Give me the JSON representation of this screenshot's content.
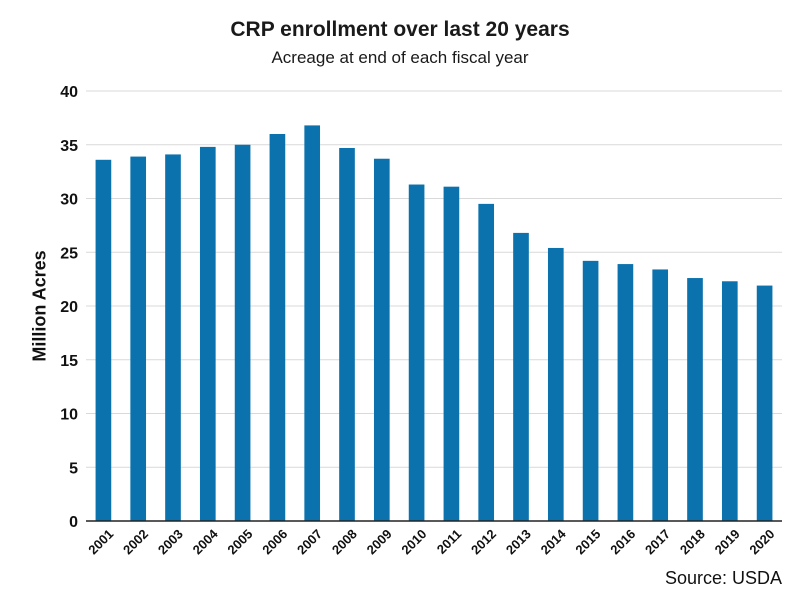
{
  "chart_data": {
    "type": "bar",
    "title": "CRP enrollment over last 20 years",
    "subtitle": "Acreage at end of each fiscal year",
    "ylabel": "Million Acres",
    "xlabel": "",
    "source": "Source: USDA",
    "categories": [
      "2001",
      "2002",
      "2003",
      "2004",
      "2005",
      "2006",
      "2007",
      "2008",
      "2009",
      "2010",
      "2011",
      "2012",
      "2013",
      "2014",
      "2015",
      "2016",
      "2017",
      "2018",
      "2019",
      "2020"
    ],
    "values": [
      33.6,
      33.9,
      34.1,
      34.8,
      35.0,
      36.0,
      36.8,
      34.7,
      33.7,
      31.3,
      31.1,
      29.5,
      26.8,
      25.4,
      24.2,
      23.9,
      23.4,
      22.6,
      22.3,
      21.9
    ],
    "ylim": [
      0,
      40
    ],
    "yticks": [
      0,
      5,
      10,
      15,
      20,
      25,
      30,
      35,
      40
    ],
    "grid": true,
    "legend": "none",
    "colors": {
      "bar": "#0b72ad",
      "grid": "#d9d9d9",
      "axis": "#222222"
    }
  }
}
